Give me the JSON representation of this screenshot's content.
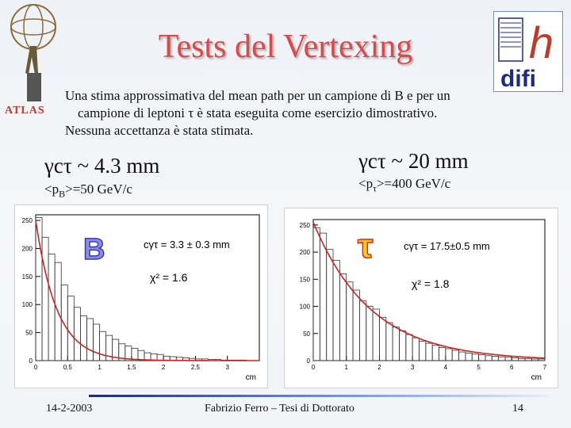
{
  "title": "Tests del Vertexing",
  "logos": {
    "atlas_label": "ATLAS",
    "infn_text": "difi"
  },
  "intro": {
    "line1": "Una stima approssimativa del mean path per un campione di B e per un",
    "line2": "campione di leptoni τ è stata eseguita come esercizio dimostrativo.",
    "line3": "Nessuna accettanza è stata stimata."
  },
  "left": {
    "gct": "γcτ ~ 4.3 mm",
    "momentum_prefix": "<p",
    "momentum_sub": "B",
    "momentum_suffix": ">=50 GeV/c",
    "particle_symbol": "B",
    "fit_label": "cγτ = 3.3 ± 0.3 mm",
    "chi2_label": "χ² = 1.6"
  },
  "right": {
    "gct": "γcτ ~ 20 mm",
    "momentum_prefix": "<p",
    "momentum_sub": "τ",
    "momentum_suffix": ">=400 GeV/c",
    "particle_symbol": "τ",
    "fit_label": "cγτ = 17.5±0.5 mm",
    "chi2_label": "χ² = 1.8"
  },
  "chart_data": [
    {
      "type": "bar",
      "xlabel": "cm",
      "xlim": [
        0,
        3.5
      ],
      "ylim": [
        0,
        260
      ],
      "x_ticks": [
        "0",
        "0.5",
        "1",
        "1.5",
        "2",
        "2.5",
        "3"
      ],
      "y_ticks": [
        "0",
        "50",
        "100",
        "150",
        "200",
        "250"
      ],
      "bin_width": 0.1,
      "values": [
        255,
        220,
        190,
        175,
        135,
        115,
        95,
        80,
        75,
        65,
        52,
        45,
        38,
        30,
        26,
        22,
        18,
        14,
        12,
        11,
        8,
        7,
        6,
        5,
        4,
        3,
        3,
        2,
        2,
        1,
        1,
        1,
        1,
        0,
        0
      ],
      "fit": {
        "A": 250,
        "ctau_cm": 0.33
      }
    },
    {
      "type": "bar",
      "xlabel": "cm",
      "xlim": [
        0,
        7
      ],
      "ylim": [
        0,
        260
      ],
      "x_ticks": [
        "0",
        "1",
        "2",
        "3",
        "4",
        "5",
        "6",
        "7"
      ],
      "y_ticks": [
        "0",
        "50",
        "100",
        "150",
        "200",
        "250"
      ],
      "bin_width": 0.2,
      "values": [
        245,
        235,
        205,
        185,
        160,
        145,
        130,
        110,
        100,
        95,
        80,
        70,
        62,
        55,
        48,
        42,
        36,
        32,
        28,
        24,
        22,
        19,
        16,
        14,
        12,
        11,
        9,
        8,
        7,
        6,
        5,
        4,
        4,
        3,
        3
      ],
      "fit": {
        "A": 255,
        "ctau_cm": 1.75
      }
    }
  ],
  "footer": {
    "date": "14-2-2003",
    "author": "Fabrizio Ferro – Tesi di Dottorato",
    "page": "14"
  }
}
